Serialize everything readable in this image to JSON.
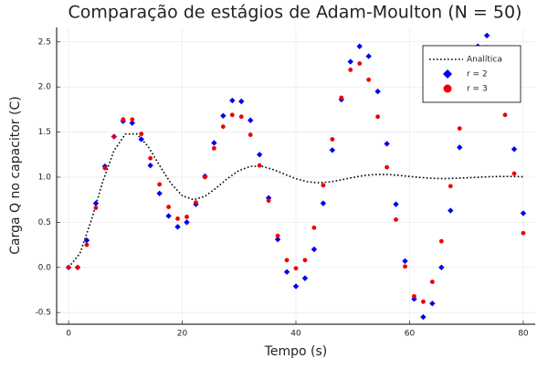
{
  "chart_data": {
    "type": "scatter",
    "title": "Comparação de estágios de Adam-Moulton (N = 50)",
    "x_label": "Tempo (s)",
    "y_label": "Carga Q no capacitor (C)",
    "xlim": [
      -2.1,
      82.1
    ],
    "ylim": [
      -0.63,
      2.66
    ],
    "xticks": [
      0,
      20,
      40,
      60,
      80
    ],
    "yticks": [
      -0.5,
      {
        "value": 0,
        "label": "0.0"
      },
      0.5,
      {
        "value": 1,
        "label": "1.0"
      },
      1.5,
      {
        "value": 2,
        "label": "2.0"
      },
      2.5
    ],
    "grid": true,
    "legend": "top-right",
    "series": [
      {
        "name": "Analítica",
        "color": "#000000",
        "style": "dotted",
        "x": [
          0,
          2,
          4,
          6,
          8,
          10,
          12,
          14,
          16,
          18,
          20,
          22,
          24,
          26,
          28,
          30,
          32,
          34,
          36,
          38,
          40,
          42,
          44,
          46,
          48,
          50,
          52,
          54,
          56,
          58,
          60,
          62,
          64,
          66,
          68,
          70,
          72,
          74,
          76,
          78,
          80
        ],
        "values": [
          0,
          0.153,
          0.522,
          0.948,
          1.295,
          1.478,
          1.48,
          1.34,
          1.131,
          0.931,
          0.795,
          0.75,
          0.788,
          0.881,
          0.987,
          1.074,
          1.12,
          1.12,
          1.085,
          1.033,
          0.983,
          0.949,
          0.938,
          0.947,
          0.97,
          0.997,
          1.019,
          1.03,
          1.03,
          1.021,
          1.008,
          0.996,
          0.987,
          0.984,
          0.987,
          0.993,
          0.999,
          1.005,
          1.008,
          1.008,
          1.005
        ]
      },
      {
        "name": "r = 2",
        "color": "#0000ee",
        "marker": "diamond",
        "x": [
          0,
          1.6,
          3.2,
          4.8,
          6.4,
          8,
          9.6,
          11.2,
          12.8,
          14.4,
          16,
          17.6,
          19.2,
          20.8,
          22.4,
          24,
          25.6,
          27.2,
          28.8,
          30.4,
          32,
          33.6,
          35.2,
          36.8,
          38.4,
          40,
          41.6,
          43.2,
          44.8,
          46.4,
          48,
          49.6,
          51.2,
          52.8,
          54.4,
          56,
          57.6,
          59.2,
          60.8,
          62.4,
          64,
          65.6,
          67.2,
          68.8,
          70.4,
          72,
          73.6,
          75.2,
          76.8,
          78.4,
          80
        ],
        "values": [
          0,
          0,
          0.3,
          0.71,
          1.12,
          1.45,
          1.62,
          1.6,
          1.42,
          1.13,
          0.82,
          0.57,
          0.45,
          0.5,
          0.7,
          1.01,
          1.38,
          1.68,
          1.85,
          1.84,
          1.63,
          1.25,
          0.77,
          0.31,
          -0.05,
          -0.21,
          -0.12,
          0.2,
          0.71,
          1.3,
          1.86,
          2.28,
          2.45,
          2.34,
          1.95,
          1.37,
          0.7,
          0.07,
          -0.35,
          -0.55,
          -0.4,
          0,
          0.63,
          1.33,
          1.95,
          2.45,
          2.57,
          2.4,
          1.95,
          1.31,
          0.6
        ]
      },
      {
        "name": "r = 3",
        "color": "#ee0000",
        "marker": "circle",
        "x": [
          0,
          1.6,
          3.2,
          4.8,
          6.4,
          8,
          9.6,
          11.2,
          12.8,
          14.4,
          16,
          17.6,
          19.2,
          20.8,
          22.4,
          24,
          25.6,
          27.2,
          28.8,
          30.4,
          32,
          33.6,
          35.2,
          36.8,
          38.4,
          40,
          41.6,
          43.2,
          44.8,
          46.4,
          48,
          49.6,
          51.2,
          52.8,
          54.4,
          56,
          57.6,
          59.2,
          60.8,
          62.4,
          64,
          65.6,
          67.2,
          68.8,
          70.4,
          72,
          73.6,
          75.2,
          76.8,
          78.4,
          80
        ],
        "values": [
          0,
          0,
          0.25,
          0.66,
          1.1,
          1.45,
          1.64,
          1.64,
          1.48,
          1.21,
          0.92,
          0.67,
          0.54,
          0.56,
          0.72,
          1,
          1.32,
          1.56,
          1.69,
          1.67,
          1.47,
          1.13,
          0.74,
          0.35,
          0.08,
          -0.01,
          0.08,
          0.44,
          0.91,
          1.42,
          1.88,
          2.19,
          2.26,
          2.08,
          1.67,
          1.11,
          0.53,
          0.01,
          -0.32,
          -0.38,
          -0.16,
          0.29,
          0.9,
          1.54,
          2,
          2.3,
          2.44,
          2.2,
          1.69,
          1.04,
          0.38
        ]
      }
    ]
  }
}
